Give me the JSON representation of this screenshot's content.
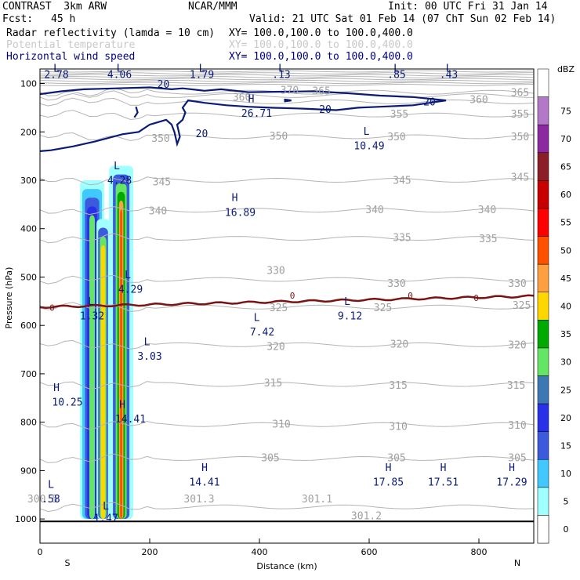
{
  "header": {
    "title": "CONTRAST  3km ARW",
    "org": "NCAR/MMM",
    "init": "Init: 00 UTC Fri 31 Jan 14",
    "fcst_label": "Fcst:",
    "fcst_value": "45 h",
    "valid": "Valid: 21 UTC Sat 01 Feb 14 (07 ChT Sun 02 Feb 14)",
    "fields": [
      {
        "name": "Radar reflectivity (lamda = 10 cm)",
        "xy": "XY= 100.0,100.0 to 100.0,400.0",
        "color": "#000000"
      },
      {
        "name": "Potential temperature",
        "xy": "XY= 100.0,100.0 to 100.0,400.0",
        "color": "#c8c8c8"
      },
      {
        "name": "Horizontal wind speed",
        "xy": "XY= 100.0,100.0 to 100.0,400.0",
        "color": "#000080"
      }
    ]
  },
  "chart_data": {
    "type": "cross-section",
    "xlabel": "Distance (km)",
    "ylabel": "Pressure (hPa)",
    "x_ticks": [
      0,
      200,
      400,
      600,
      800
    ],
    "x_range": [
      0,
      900
    ],
    "x_endpoints": [
      "S",
      "N"
    ],
    "y_ticks": [
      100,
      200,
      300,
      400,
      500,
      600,
      700,
      800,
      900,
      1000
    ],
    "y_range": [
      70,
      1050
    ],
    "colorbar": {
      "unit": "dBZ",
      "levels": [
        0,
        5,
        10,
        15,
        20,
        25,
        30,
        35,
        40,
        45,
        50,
        55,
        60,
        65,
        70,
        75
      ],
      "colors": [
        "#ffffff",
        "#a0ffff",
        "#40c8ff",
        "#3c5adc",
        "#2830e8",
        "#3c78b4",
        "#64e664",
        "#00aa00",
        "#ffd700",
        "#ffa040",
        "#ff5000",
        "#ff0000",
        "#c80000",
        "#8c1e28",
        "#8c28a0",
        "#b478c8"
      ]
    },
    "theta_labels": [
      {
        "v": "370",
        "x": 455,
        "p": 115
      },
      {
        "v": "365",
        "x": 513,
        "p": 117
      },
      {
        "v": "365",
        "x": 875,
        "p": 120
      },
      {
        "v": "360",
        "x": 368,
        "p": 130
      },
      {
        "v": "360",
        "x": 800,
        "p": 135
      },
      {
        "v": "355",
        "x": 655,
        "p": 165
      },
      {
        "v": "355",
        "x": 875,
        "p": 165
      },
      {
        "v": "350",
        "x": 220,
        "p": 215
      },
      {
        "v": "350",
        "x": 435,
        "p": 210
      },
      {
        "v": "350",
        "x": 650,
        "p": 212
      },
      {
        "v": "350",
        "x": 875,
        "p": 212
      },
      {
        "v": "345",
        "x": 222,
        "p": 305
      },
      {
        "v": "345",
        "x": 660,
        "p": 302
      },
      {
        "v": "345",
        "x": 875,
        "p": 295
      },
      {
        "v": "340",
        "x": 215,
        "p": 365
      },
      {
        "v": "340",
        "x": 610,
        "p": 362
      },
      {
        "v": "340",
        "x": 815,
        "p": 362
      },
      {
        "v": "335",
        "x": 660,
        "p": 420
      },
      {
        "v": "335",
        "x": 817,
        "p": 422
      },
      {
        "v": "330",
        "x": 430,
        "p": 488
      },
      {
        "v": "330",
        "x": 650,
        "p": 515
      },
      {
        "v": "330",
        "x": 870,
        "p": 515
      },
      {
        "v": "325",
        "x": 435,
        "p": 565
      },
      {
        "v": "325",
        "x": 625,
        "p": 565
      },
      {
        "v": "325",
        "x": 878,
        "p": 560
      },
      {
        "v": "320",
        "x": 430,
        "p": 645
      },
      {
        "v": "320",
        "x": 655,
        "p": 640
      },
      {
        "v": "320",
        "x": 870,
        "p": 642
      },
      {
        "v": "315",
        "x": 425,
        "p": 720
      },
      {
        "v": "315",
        "x": 653,
        "p": 725
      },
      {
        "v": "315",
        "x": 868,
        "p": 725
      },
      {
        "v": "310",
        "x": 440,
        "p": 805
      },
      {
        "v": "310",
        "x": 653,
        "p": 810
      },
      {
        "v": "310",
        "x": 870,
        "p": 808
      },
      {
        "v": "305",
        "x": 420,
        "p": 875
      },
      {
        "v": "305",
        "x": 650,
        "p": 875
      },
      {
        "v": "305",
        "x": 870,
        "p": 875
      },
      {
        "v": "300.5",
        "x": 5,
        "p": 960
      },
      {
        "v": "301.3",
        "x": 290,
        "p": 960
      },
      {
        "v": "301.1",
        "x": 505,
        "p": 960
      },
      {
        "v": "301.2",
        "x": 595,
        "p": 995
      }
    ],
    "wind_labels": [
      {
        "v": "20",
        "x": 225,
        "p": 103
      },
      {
        "v": "20",
        "x": 520,
        "p": 155
      },
      {
        "v": "20",
        "x": 710,
        "p": 140
      },
      {
        "v": "20",
        "x": 295,
        "p": 205
      }
    ],
    "freezing_labels": [
      {
        "v": "0",
        "x": 22,
        "p": 565
      },
      {
        "v": "0",
        "x": 460,
        "p": 540
      },
      {
        "v": "0",
        "x": 675,
        "p": 540
      },
      {
        "v": "0",
        "x": 795,
        "p": 545
      }
    ],
    "extrema": [
      {
        "t": "L",
        "v": "2.78",
        "x": 30,
        "p": 83,
        "lx": 30,
        "lp": 70
      },
      {
        "t": "L",
        "v": "4.06",
        "x": 145,
        "p": 83,
        "lx": 145,
        "lp": 70
      },
      {
        "t": "L",
        "v": "1.79",
        "x": 295,
        "p": 83,
        "lx": 295,
        "lp": 70
      },
      {
        "t": "L",
        "v": ".13",
        "x": 440,
        "p": 83,
        "lx": 440,
        "lp": 70
      },
      {
        "t": "L",
        "v": ".85",
        "x": 650,
        "p": 83,
        "lx": 650,
        "lp": 70
      },
      {
        "t": "L",
        "v": ".43",
        "x": 745,
        "p": 83,
        "lx": 745,
        "lp": 70
      },
      {
        "t": "H",
        "v": "26.71",
        "x": 395,
        "p": 163,
        "lx": 385,
        "lp": 133
      },
      {
        "t": "L",
        "v": "10.49",
        "x": 600,
        "p": 230,
        "lx": 595,
        "lp": 200
      },
      {
        "t": "L",
        "v": "4.28",
        "x": 145,
        "p": 302,
        "lx": 140,
        "lp": 272
      },
      {
        "t": "H",
        "v": "16.89",
        "x": 365,
        "p": 368,
        "lx": 355,
        "lp": 337
      },
      {
        "t": "L",
        "v": "4.29",
        "x": 165,
        "p": 527,
        "lx": 160,
        "lp": 497
      },
      {
        "t": "L",
        "v": "1.32",
        "x": 95,
        "p": 582,
        "lx": 93,
        "lp": 552
      },
      {
        "t": "L",
        "v": "9.12",
        "x": 565,
        "p": 582,
        "lx": 560,
        "lp": 552
      },
      {
        "t": "L",
        "v": "7.42",
        "x": 405,
        "p": 615,
        "lx": 395,
        "lp": 585
      },
      {
        "t": "L",
        "v": "3.03",
        "x": 200,
        "p": 665,
        "lx": 195,
        "lp": 635
      },
      {
        "t": "H",
        "v": "10.25",
        "x": 50,
        "p": 760,
        "lx": 30,
        "lp": 730
      },
      {
        "t": "H",
        "v": "14.41",
        "x": 165,
        "p": 795,
        "lx": 150,
        "lp": 765
      },
      {
        "t": "H",
        "v": "14.41",
        "x": 300,
        "p": 925,
        "lx": 300,
        "lp": 895
      },
      {
        "t": "H",
        "v": "17.85",
        "x": 635,
        "p": 925,
        "lx": 635,
        "lp": 895
      },
      {
        "t": "H",
        "v": "17.51",
        "x": 735,
        "p": 925,
        "lx": 735,
        "lp": 895
      },
      {
        "t": "H",
        "v": "17.29",
        "x": 860,
        "p": 925,
        "lx": 860,
        "lp": 895
      },
      {
        "t": "L",
        "v": ".58",
        "x": 20,
        "p": 960,
        "lx": 20,
        "lp": 930
      },
      {
        "t": "L",
        "v": "1.47",
        "x": 120,
        "p": 1000,
        "lx": 120,
        "lp": 975
      }
    ]
  }
}
